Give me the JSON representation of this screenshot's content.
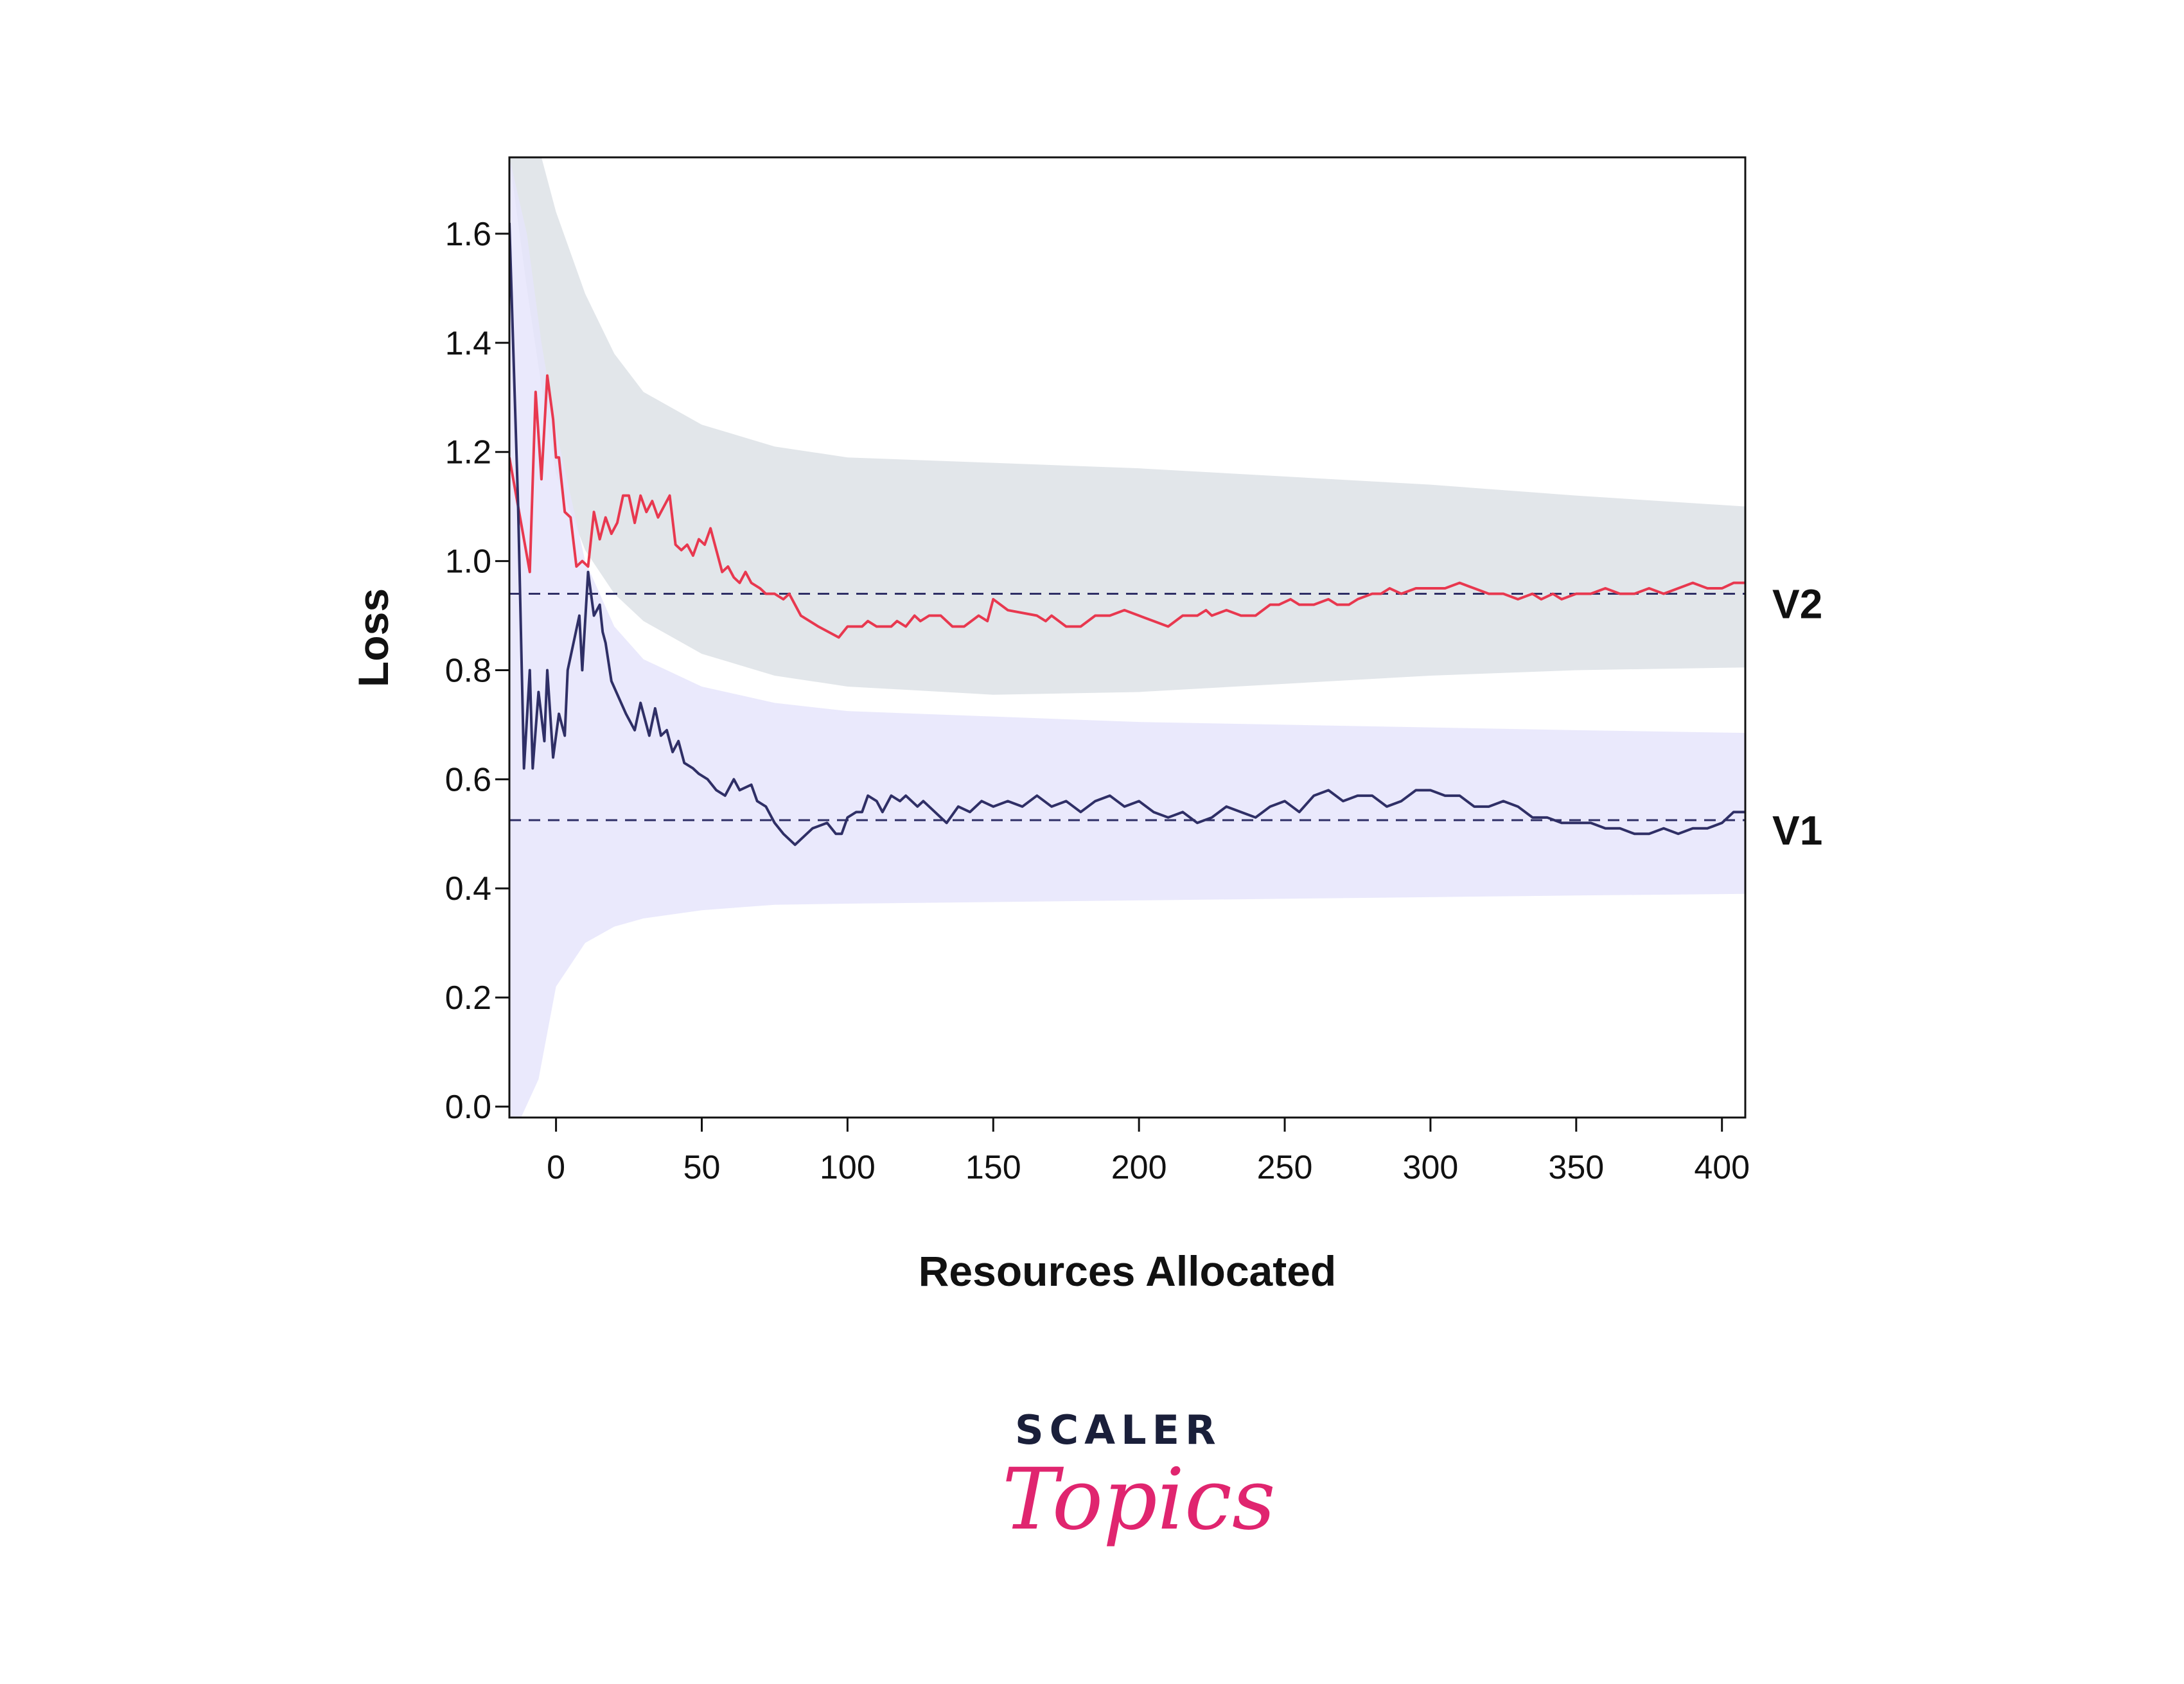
{
  "chart_data": {
    "type": "line",
    "xlabel": "Resources Allocated",
    "ylabel": "Loss",
    "xlim": [
      -16,
      408
    ],
    "ylim": [
      -0.02,
      1.74
    ],
    "xticks": [
      0,
      50,
      100,
      150,
      200,
      250,
      300,
      350,
      400
    ],
    "yticks": [
      0.0,
      0.2,
      0.4,
      0.6,
      0.8,
      1.0,
      1.2,
      1.4,
      1.6
    ],
    "grid": false,
    "series": [
      {
        "name": "V2",
        "color": "#e8384f",
        "mean": 0.94,
        "band": {
          "color": "#e2e6ea",
          "upper": [
            [
              -16,
              1.74
            ],
            [
              -10,
              1.74
            ],
            [
              -5,
              1.74
            ],
            [
              0,
              1.64
            ],
            [
              10,
              1.49
            ],
            [
              20,
              1.38
            ],
            [
              30,
              1.31
            ],
            [
              50,
              1.25
            ],
            [
              75,
              1.21
            ],
            [
              100,
              1.19
            ],
            [
              150,
              1.18
            ],
            [
              200,
              1.17
            ],
            [
              250,
              1.155
            ],
            [
              300,
              1.14
            ],
            [
              350,
              1.12
            ],
            [
              408,
              1.1
            ]
          ],
          "lower": [
            [
              -16,
              1.74
            ],
            [
              -10,
              1.5
            ],
            [
              -5,
              1.32
            ],
            [
              0,
              1.16
            ],
            [
              10,
              1.02
            ],
            [
              20,
              0.94
            ],
            [
              30,
              0.89
            ],
            [
              50,
              0.83
            ],
            [
              75,
              0.79
            ],
            [
              100,
              0.77
            ],
            [
              150,
              0.755
            ],
            [
              200,
              0.76
            ],
            [
              250,
              0.775
            ],
            [
              300,
              0.79
            ],
            [
              350,
              0.8
            ],
            [
              408,
              0.805
            ]
          ]
        },
        "points": [
          [
            -16,
            1.19
          ],
          [
            -13,
            1.1
          ],
          [
            -9,
            0.98
          ],
          [
            -7,
            1.31
          ],
          [
            -5,
            1.15
          ],
          [
            -3,
            1.34
          ],
          [
            -1,
            1.26
          ],
          [
            0,
            1.19
          ],
          [
            1,
            1.19
          ],
          [
            3,
            1.09
          ],
          [
            5,
            1.08
          ],
          [
            7,
            0.99
          ],
          [
            9,
            1.0
          ],
          [
            11,
            0.99
          ],
          [
            13,
            1.09
          ],
          [
            15,
            1.04
          ],
          [
            17,
            1.08
          ],
          [
            19,
            1.05
          ],
          [
            21,
            1.07
          ],
          [
            23,
            1.12
          ],
          [
            25,
            1.12
          ],
          [
            27,
            1.07
          ],
          [
            29,
            1.12
          ],
          [
            31,
            1.09
          ],
          [
            33,
            1.11
          ],
          [
            35,
            1.08
          ],
          [
            37,
            1.1
          ],
          [
            39,
            1.12
          ],
          [
            41,
            1.03
          ],
          [
            43,
            1.02
          ],
          [
            45,
            1.03
          ],
          [
            47,
            1.01
          ],
          [
            49,
            1.04
          ],
          [
            51,
            1.03
          ],
          [
            53,
            1.06
          ],
          [
            55,
            1.02
          ],
          [
            57,
            0.98
          ],
          [
            59,
            0.99
          ],
          [
            61,
            0.97
          ],
          [
            63,
            0.96
          ],
          [
            65,
            0.98
          ],
          [
            67,
            0.96
          ],
          [
            70,
            0.95
          ],
          [
            72,
            0.94
          ],
          [
            75,
            0.94
          ],
          [
            78,
            0.93
          ],
          [
            80,
            0.94
          ],
          [
            84,
            0.9
          ],
          [
            90,
            0.88
          ],
          [
            97,
            0.86
          ],
          [
            100,
            0.88
          ],
          [
            105,
            0.88
          ],
          [
            107,
            0.89
          ],
          [
            110,
            0.88
          ],
          [
            115,
            0.88
          ],
          [
            117,
            0.89
          ],
          [
            120,
            0.88
          ],
          [
            123,
            0.9
          ],
          [
            125,
            0.89
          ],
          [
            128,
            0.9
          ],
          [
            132,
            0.9
          ],
          [
            136,
            0.88
          ],
          [
            140,
            0.88
          ],
          [
            145,
            0.9
          ],
          [
            148,
            0.89
          ],
          [
            150,
            0.93
          ],
          [
            155,
            0.91
          ],
          [
            165,
            0.9
          ],
          [
            168,
            0.89
          ],
          [
            170,
            0.9
          ],
          [
            175,
            0.88
          ],
          [
            180,
            0.88
          ],
          [
            185,
            0.9
          ],
          [
            190,
            0.9
          ],
          [
            195,
            0.91
          ],
          [
            200,
            0.9
          ],
          [
            205,
            0.89
          ],
          [
            210,
            0.88
          ],
          [
            215,
            0.9
          ],
          [
            220,
            0.9
          ],
          [
            223,
            0.91
          ],
          [
            225,
            0.9
          ],
          [
            230,
            0.91
          ],
          [
            235,
            0.9
          ],
          [
            240,
            0.9
          ],
          [
            245,
            0.92
          ],
          [
            248,
            0.92
          ],
          [
            252,
            0.93
          ],
          [
            255,
            0.92
          ],
          [
            260,
            0.92
          ],
          [
            265,
            0.93
          ],
          [
            268,
            0.92
          ],
          [
            272,
            0.92
          ],
          [
            275,
            0.93
          ],
          [
            280,
            0.94
          ],
          [
            283,
            0.94
          ],
          [
            286,
            0.95
          ],
          [
            290,
            0.94
          ],
          [
            295,
            0.95
          ],
          [
            300,
            0.95
          ],
          [
            305,
            0.95
          ],
          [
            310,
            0.96
          ],
          [
            315,
            0.95
          ],
          [
            320,
            0.94
          ],
          [
            325,
            0.94
          ],
          [
            330,
            0.93
          ],
          [
            335,
            0.94
          ],
          [
            338,
            0.93
          ],
          [
            342,
            0.94
          ],
          [
            345,
            0.93
          ],
          [
            350,
            0.94
          ],
          [
            355,
            0.94
          ],
          [
            360,
            0.95
          ],
          [
            365,
            0.94
          ],
          [
            370,
            0.94
          ],
          [
            375,
            0.95
          ],
          [
            380,
            0.94
          ],
          [
            385,
            0.95
          ],
          [
            390,
            0.96
          ],
          [
            395,
            0.95
          ],
          [
            400,
            0.95
          ],
          [
            404,
            0.96
          ],
          [
            408,
            0.96
          ]
        ]
      },
      {
        "name": "V1",
        "color": "#2f2f66",
        "mean": 0.525,
        "band": {
          "color": "#e5e4fb",
          "upper": [
            [
              -16,
              1.74
            ],
            [
              -10,
              1.6
            ],
            [
              -5,
              1.4
            ],
            [
              0,
              1.24
            ],
            [
              10,
              1.0
            ],
            [
              20,
              0.88
            ],
            [
              30,
              0.82
            ],
            [
              50,
              0.77
            ],
            [
              75,
              0.74
            ],
            [
              100,
              0.725
            ],
            [
              150,
              0.715
            ],
            [
              200,
              0.705
            ],
            [
              250,
              0.7
            ],
            [
              300,
              0.695
            ],
            [
              350,
              0.69
            ],
            [
              408,
              0.685
            ]
          ],
          "lower": [
            [
              -16,
              -0.02
            ],
            [
              -12,
              -0.02
            ],
            [
              -6,
              0.05
            ],
            [
              0,
              0.22
            ],
            [
              10,
              0.3
            ],
            [
              20,
              0.33
            ],
            [
              30,
              0.345
            ],
            [
              50,
              0.36
            ],
            [
              75,
              0.37
            ],
            [
              100,
              0.372
            ],
            [
              150,
              0.375
            ],
            [
              200,
              0.378
            ],
            [
              250,
              0.381
            ],
            [
              300,
              0.384
            ],
            [
              350,
              0.387
            ],
            [
              408,
              0.39
            ]
          ]
        },
        "points": [
          [
            -16,
            1.62
          ],
          [
            -13,
            1.1
          ],
          [
            -11,
            0.62
          ],
          [
            -9,
            0.8
          ],
          [
            -8,
            0.62
          ],
          [
            -6,
            0.76
          ],
          [
            -4,
            0.67
          ],
          [
            -3,
            0.8
          ],
          [
            -1,
            0.64
          ],
          [
            1,
            0.72
          ],
          [
            3,
            0.68
          ],
          [
            4,
            0.8
          ],
          [
            6,
            0.85
          ],
          [
            8,
            0.9
          ],
          [
            9,
            0.8
          ],
          [
            11,
            0.98
          ],
          [
            13,
            0.9
          ],
          [
            15,
            0.92
          ],
          [
            16,
            0.87
          ],
          [
            17,
            0.85
          ],
          [
            19,
            0.78
          ],
          [
            24,
            0.72
          ],
          [
            27,
            0.69
          ],
          [
            29,
            0.74
          ],
          [
            32,
            0.68
          ],
          [
            34,
            0.73
          ],
          [
            36,
            0.68
          ],
          [
            38,
            0.69
          ],
          [
            40,
            0.65
          ],
          [
            42,
            0.67
          ],
          [
            44,
            0.63
          ],
          [
            47,
            0.62
          ],
          [
            49,
            0.61
          ],
          [
            52,
            0.6
          ],
          [
            55,
            0.58
          ],
          [
            58,
            0.57
          ],
          [
            61,
            0.6
          ],
          [
            63,
            0.58
          ],
          [
            67,
            0.59
          ],
          [
            69,
            0.56
          ],
          [
            72,
            0.55
          ],
          [
            75,
            0.52
          ],
          [
            78,
            0.5
          ],
          [
            82,
            0.48
          ],
          [
            88,
            0.51
          ],
          [
            93,
            0.52
          ],
          [
            96,
            0.5
          ],
          [
            98,
            0.5
          ],
          [
            100,
            0.53
          ],
          [
            103,
            0.54
          ],
          [
            105,
            0.54
          ],
          [
            107,
            0.57
          ],
          [
            110,
            0.56
          ],
          [
            112,
            0.54
          ],
          [
            115,
            0.57
          ],
          [
            118,
            0.56
          ],
          [
            120,
            0.57
          ],
          [
            122,
            0.56
          ],
          [
            124,
            0.55
          ],
          [
            126,
            0.56
          ],
          [
            130,
            0.54
          ],
          [
            134,
            0.52
          ],
          [
            138,
            0.55
          ],
          [
            142,
            0.54
          ],
          [
            146,
            0.56
          ],
          [
            150,
            0.55
          ],
          [
            155,
            0.56
          ],
          [
            160,
            0.55
          ],
          [
            165,
            0.57
          ],
          [
            170,
            0.55
          ],
          [
            175,
            0.56
          ],
          [
            180,
            0.54
          ],
          [
            185,
            0.56
          ],
          [
            190,
            0.57
          ],
          [
            195,
            0.55
          ],
          [
            200,
            0.56
          ],
          [
            205,
            0.54
          ],
          [
            210,
            0.53
          ],
          [
            215,
            0.54
          ],
          [
            220,
            0.52
          ],
          [
            225,
            0.53
          ],
          [
            230,
            0.55
          ],
          [
            235,
            0.54
          ],
          [
            240,
            0.53
          ],
          [
            245,
            0.55
          ],
          [
            250,
            0.56
          ],
          [
            255,
            0.54
          ],
          [
            260,
            0.57
          ],
          [
            265,
            0.58
          ],
          [
            270,
            0.56
          ],
          [
            275,
            0.57
          ],
          [
            280,
            0.57
          ],
          [
            285,
            0.55
          ],
          [
            290,
            0.56
          ],
          [
            295,
            0.58
          ],
          [
            300,
            0.58
          ],
          [
            305,
            0.57
          ],
          [
            310,
            0.57
          ],
          [
            315,
            0.55
          ],
          [
            320,
            0.55
          ],
          [
            325,
            0.56
          ],
          [
            330,
            0.55
          ],
          [
            335,
            0.53
          ],
          [
            340,
            0.53
          ],
          [
            345,
            0.52
          ],
          [
            350,
            0.52
          ],
          [
            355,
            0.52
          ],
          [
            360,
            0.51
          ],
          [
            365,
            0.51
          ],
          [
            370,
            0.5
          ],
          [
            375,
            0.5
          ],
          [
            380,
            0.51
          ],
          [
            385,
            0.5
          ],
          [
            390,
            0.51
          ],
          [
            395,
            0.51
          ],
          [
            400,
            0.52
          ],
          [
            404,
            0.54
          ],
          [
            408,
            0.54
          ]
        ]
      }
    ]
  },
  "branding": {
    "word": "SCALER",
    "script": "Topics",
    "word_color": "#1a1f3a",
    "script_color": "#e0256f"
  }
}
